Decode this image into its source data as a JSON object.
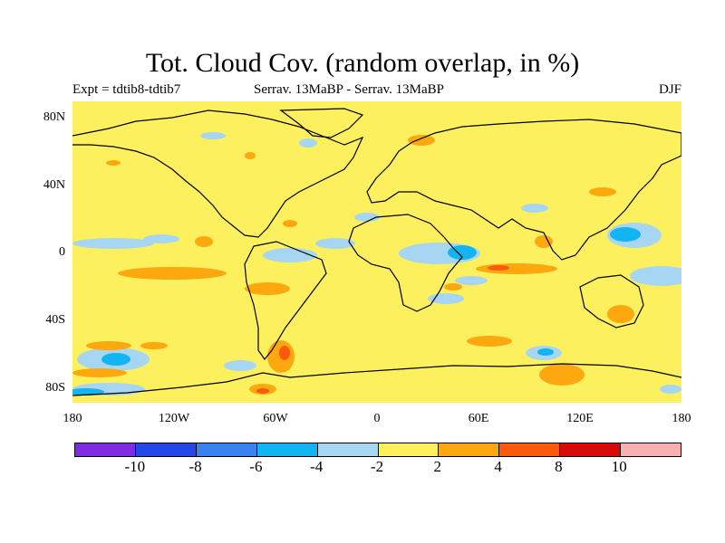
{
  "title": "Tot. Cloud Cov. (random overlap, in %)",
  "subtitle_left": "Expt = tdtib8-tdtib7",
  "subtitle_center": "Serrav.   13MaBP - Serrav.   13MaBP",
  "subtitle_right": "DJF",
  "lat_labels": [
    "80N",
    "40N",
    "0",
    "40S",
    "80S"
  ],
  "lon_labels": [
    "180",
    "120W",
    "60W",
    "0",
    "60E",
    "120E",
    "180"
  ],
  "colorbar": {
    "colors": [
      "#7d2ce0",
      "#2448e8",
      "#3a82f0",
      "#12b4f2",
      "#a6d6f2",
      "#fdf05e",
      "#fca80e",
      "#fb5a0c",
      "#d80a06",
      "#f8b0b0"
    ],
    "labels": [
      "-10",
      "-8",
      "-6",
      "-4",
      "-2",
      "2",
      "4",
      "8",
      "10"
    ]
  },
  "map": {
    "projection": "cylindrical equidistant",
    "background_color": "#fdf05e",
    "lon_range": [
      -180,
      180
    ],
    "lat_range": [
      -90,
      90
    ]
  }
}
